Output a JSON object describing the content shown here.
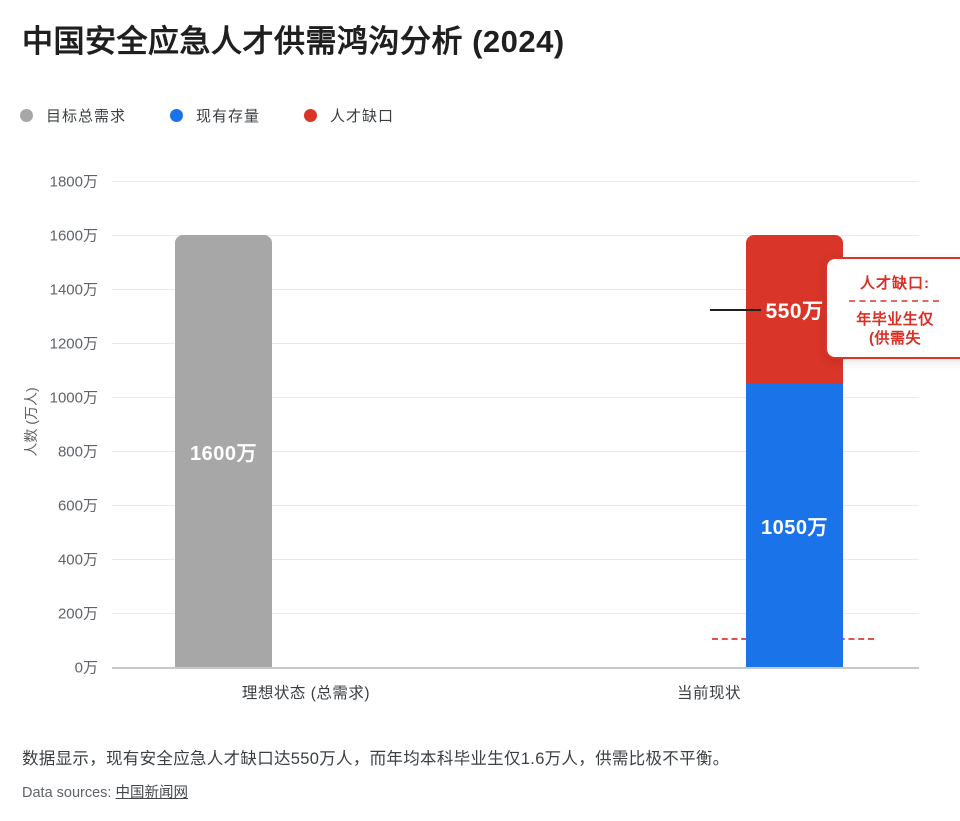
{
  "title": "中国安全应急人才供需鸿沟分析 (2024)",
  "legend": {
    "items": [
      {
        "id": "target-demand",
        "label": "目标总需求",
        "color": "#a7a7a7"
      },
      {
        "id": "current-stock",
        "label": "现有存量",
        "color": "#1a73e8"
      },
      {
        "id": "talent-gap",
        "label": "人才缺口",
        "color": "#d93528"
      }
    ]
  },
  "axes": {
    "y_title": "人数 (万人)",
    "y_ticks": [
      "1800万",
      "1600万",
      "1400万",
      "1200万",
      "1000万",
      "800万",
      "600万",
      "400万",
      "200万",
      "0万"
    ],
    "x_labels": [
      "理想状态 (总需求)",
      "当前现状"
    ]
  },
  "bars": {
    "target_label": "1600万",
    "stock_label": "1050万",
    "gap_label": "550万"
  },
  "annotation": {
    "line1": "人才缺口:",
    "line2": "年毕业生仅",
    "line3": "(供需失"
  },
  "footer": {
    "summary": "数据显示，现有安全应急人才缺口达550万人，而年均本科毕业生仅1.6万人，供需比极不平衡。",
    "sources_prefix": "Data sources: ",
    "source_link": "中国新闻网"
  },
  "chart_data": {
    "type": "bar",
    "stacked": true,
    "title": "中国安全应急人才供需鸿沟分析 (2024)",
    "categories": [
      "理想状态 (总需求)",
      "当前现状"
    ],
    "series": [
      {
        "name": "目标总需求",
        "color": "#a7a7a7",
        "values": [
          1600,
          0
        ]
      },
      {
        "name": "现有存量",
        "color": "#1a73e8",
        "values": [
          0,
          1050
        ]
      },
      {
        "name": "人才缺口",
        "color": "#d93528",
        "values": [
          0,
          550
        ]
      }
    ],
    "xlabel": "",
    "ylabel": "人数 (万人)",
    "ylim": [
      0,
      1800
    ],
    "ytick_step": 200,
    "unit": "万",
    "grid": true,
    "legend_position": "top-left",
    "annotations": [
      {
        "text": "人才缺口: / 年毕业生仅 / (供需失",
        "target_value": 550,
        "style": "red-outlined-callout, clipped at right edge"
      },
      {
        "type": "dashed-line",
        "y_approx": 100,
        "color": "#e0524a",
        "note": "short dashed reference line near bottom of 当前现状 column"
      }
    ]
  }
}
